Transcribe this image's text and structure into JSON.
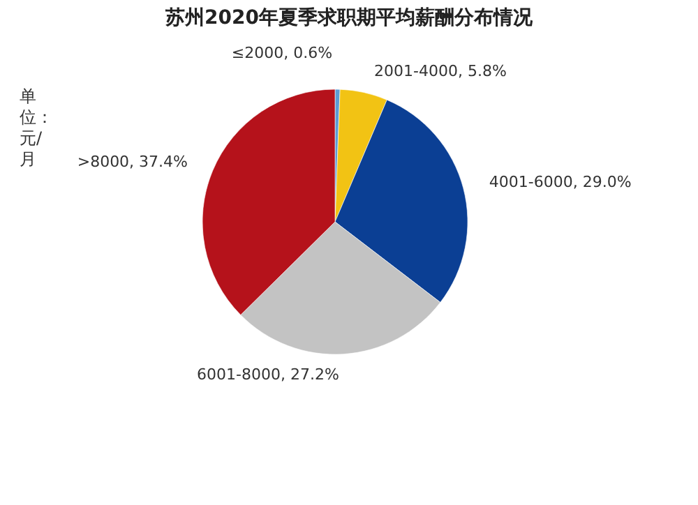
{
  "chart_data": {
    "type": "pie",
    "title": "苏州2020年夏季求职期平均薪酬分布情况",
    "categories": [
      "≤2000",
      "2001-4000",
      "4001-6000",
      "6001-8000",
      ">8000"
    ],
    "values": [
      0.6,
      5.8,
      29.0,
      27.2,
      37.4
    ],
    "value_labels": [
      "0.6%",
      "5.8%",
      "29.0%",
      "27.2%",
      "37.4%"
    ],
    "colors": [
      "#5b9bd5",
      "#f2c314",
      "#0b3f94",
      "#c3c3c3",
      "#b5121b"
    ],
    "annotations": [
      "单位：元/月"
    ],
    "legend": false
  }
}
